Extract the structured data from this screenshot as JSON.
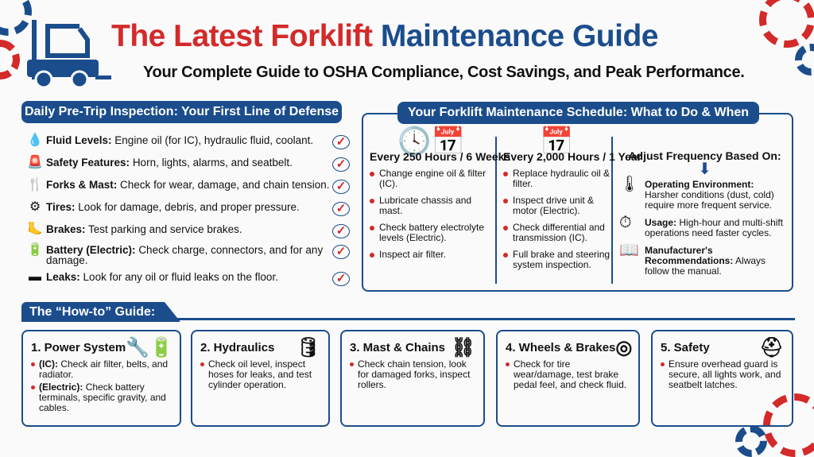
{
  "header": {
    "title_red": "The Latest Forklift",
    "title_blue": "Maintenance Guide",
    "subtitle": "Your Complete Guide to OSHA Compliance, Cost Savings, and Peak Performance."
  },
  "colors": {
    "red": "#d32a2a",
    "navy": "#1b4d8c"
  },
  "daily": {
    "title": "Daily Pre-Trip Inspection: Your First Line of Defense",
    "items": [
      {
        "icon": "droplet-icon",
        "glyph": "💧",
        "label": "Fluid Levels:",
        "text": "Engine oil (for IC), hydraulic fluid, coolant."
      },
      {
        "icon": "beacon-icon",
        "glyph": "🚨",
        "label": "Safety Features:",
        "text": "Horn, lights, alarms, and seatbelt."
      },
      {
        "icon": "fork-icon",
        "glyph": "🍴",
        "label": "Forks & Mast:",
        "text": "Check for wear, damage, and chain tension."
      },
      {
        "icon": "tire-icon",
        "glyph": "⚙",
        "label": "Tires:",
        "text": "Look for damage, debris, and proper pressure."
      },
      {
        "icon": "brake-pedal-icon",
        "glyph": "🦶",
        "label": "Brakes:",
        "text": "Test parking and service brakes."
      },
      {
        "icon": "battery-icon",
        "glyph": "🔋",
        "label": "Battery (Electric):",
        "text": "Check charge, connectors, and for any damage."
      },
      {
        "icon": "leak-puddle-icon",
        "glyph": "▬",
        "label": "Leaks:",
        "text": "Look for any oil or fluid leaks on the floor."
      }
    ],
    "check": "✓"
  },
  "schedule": {
    "title": "Your Forklift Maintenance Schedule: What to Do & When",
    "col1": {
      "heading": "Every 250 Hours / 6 Weeks",
      "icon": "🕓📅",
      "items": [
        "Change engine oil & filter (IC).",
        "Lubricate chassis and mast.",
        "Check battery electrolyte levels (Electric).",
        "Inspect air filter."
      ]
    },
    "col2": {
      "heading": "Every 2,000 Hours / 1 Year",
      "icon": "📅",
      "items": [
        "Replace hydraulic oil & filter.",
        "Inspect drive unit & motor (Electric).",
        "Check differential and transmission (IC).",
        "Full brake and steering system inspection."
      ]
    },
    "adjust": {
      "heading": "Adjust Frequency Based On:",
      "arrow": "⬇",
      "items": [
        {
          "icon": "thermometer-icon",
          "glyph": "🌡",
          "label": "Operating Environment:",
          "text": "Harsher conditions (dust, cold) require more frequent service."
        },
        {
          "icon": "clock-gear-icon",
          "glyph": "⏱",
          "label": "Usage:",
          "text": "High-hour and multi-shift operations need faster cycles."
        },
        {
          "icon": "manual-book-icon",
          "glyph": "📖",
          "label": "Manufacturer's Recommendations:",
          "text": "Always follow the manual."
        }
      ]
    }
  },
  "howto": {
    "title": "The “How-to” Guide:",
    "cards": [
      {
        "title": "1. Power System",
        "icon": "🔧🔋",
        "items": [
          {
            "label": "(IC):",
            "text": "Check air filter, belts, and radiator."
          },
          {
            "label": "(Electric):",
            "text": "Check battery terminals, specific gravity, and cables."
          }
        ]
      },
      {
        "title": "2. Hydraulics",
        "icon": "🛢",
        "items": [
          {
            "label": "",
            "text": "Check oil level, inspect hoses for leaks, and test cylinder operation."
          }
        ]
      },
      {
        "title": "3. Mast & Chains",
        "icon": "⛓",
        "items": [
          {
            "label": "",
            "text": "Check chain tension, look for damaged forks, inspect rollers."
          }
        ]
      },
      {
        "title": "4. Wheels & Brakes",
        "icon": "◎",
        "items": [
          {
            "label": "",
            "text": "Check for tire wear/damage, test brake pedal feel, and check fluid."
          }
        ]
      },
      {
        "title": "5. Safety",
        "icon": "⛑",
        "items": [
          {
            "label": "",
            "text": "Ensure overhead guard is secure, all lights work, and seatbelt latches."
          }
        ]
      }
    ]
  }
}
